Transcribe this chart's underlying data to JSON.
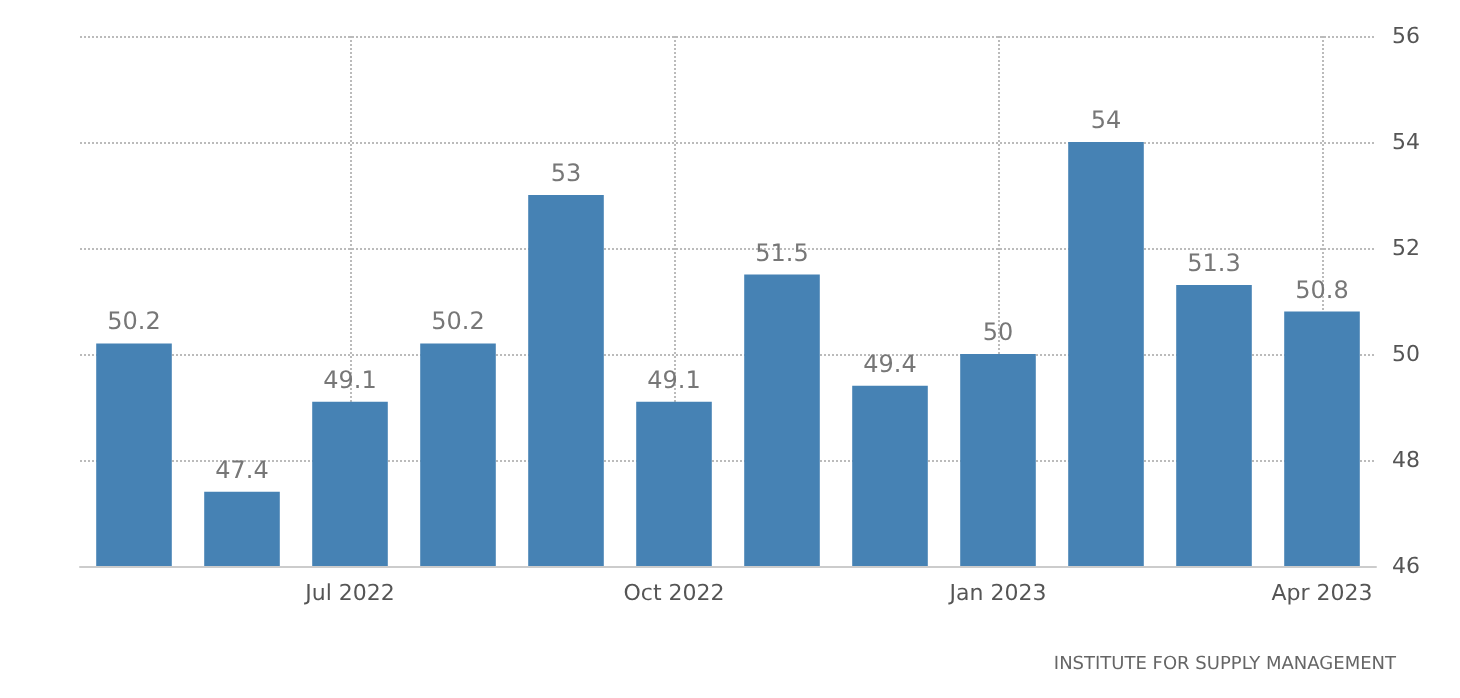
{
  "chart_data": {
    "type": "bar",
    "categories": [
      null,
      null,
      "Jul 2022",
      null,
      null,
      "Oct 2022",
      null,
      null,
      "Jan 2023",
      null,
      null,
      "Apr 2023"
    ],
    "values": [
      50.2,
      47.4,
      49.1,
      50.2,
      53,
      49.1,
      51.5,
      49.4,
      50,
      54,
      51.3,
      50.8
    ],
    "color": "#4682b4",
    "ylim": [
      46,
      56
    ],
    "yticks": [
      46,
      48,
      50,
      52,
      54,
      56
    ],
    "grid": true,
    "data_labels": true,
    "annotations": [
      "INSTITUTE FOR SUPPLY MANAGEMENT"
    ]
  }
}
